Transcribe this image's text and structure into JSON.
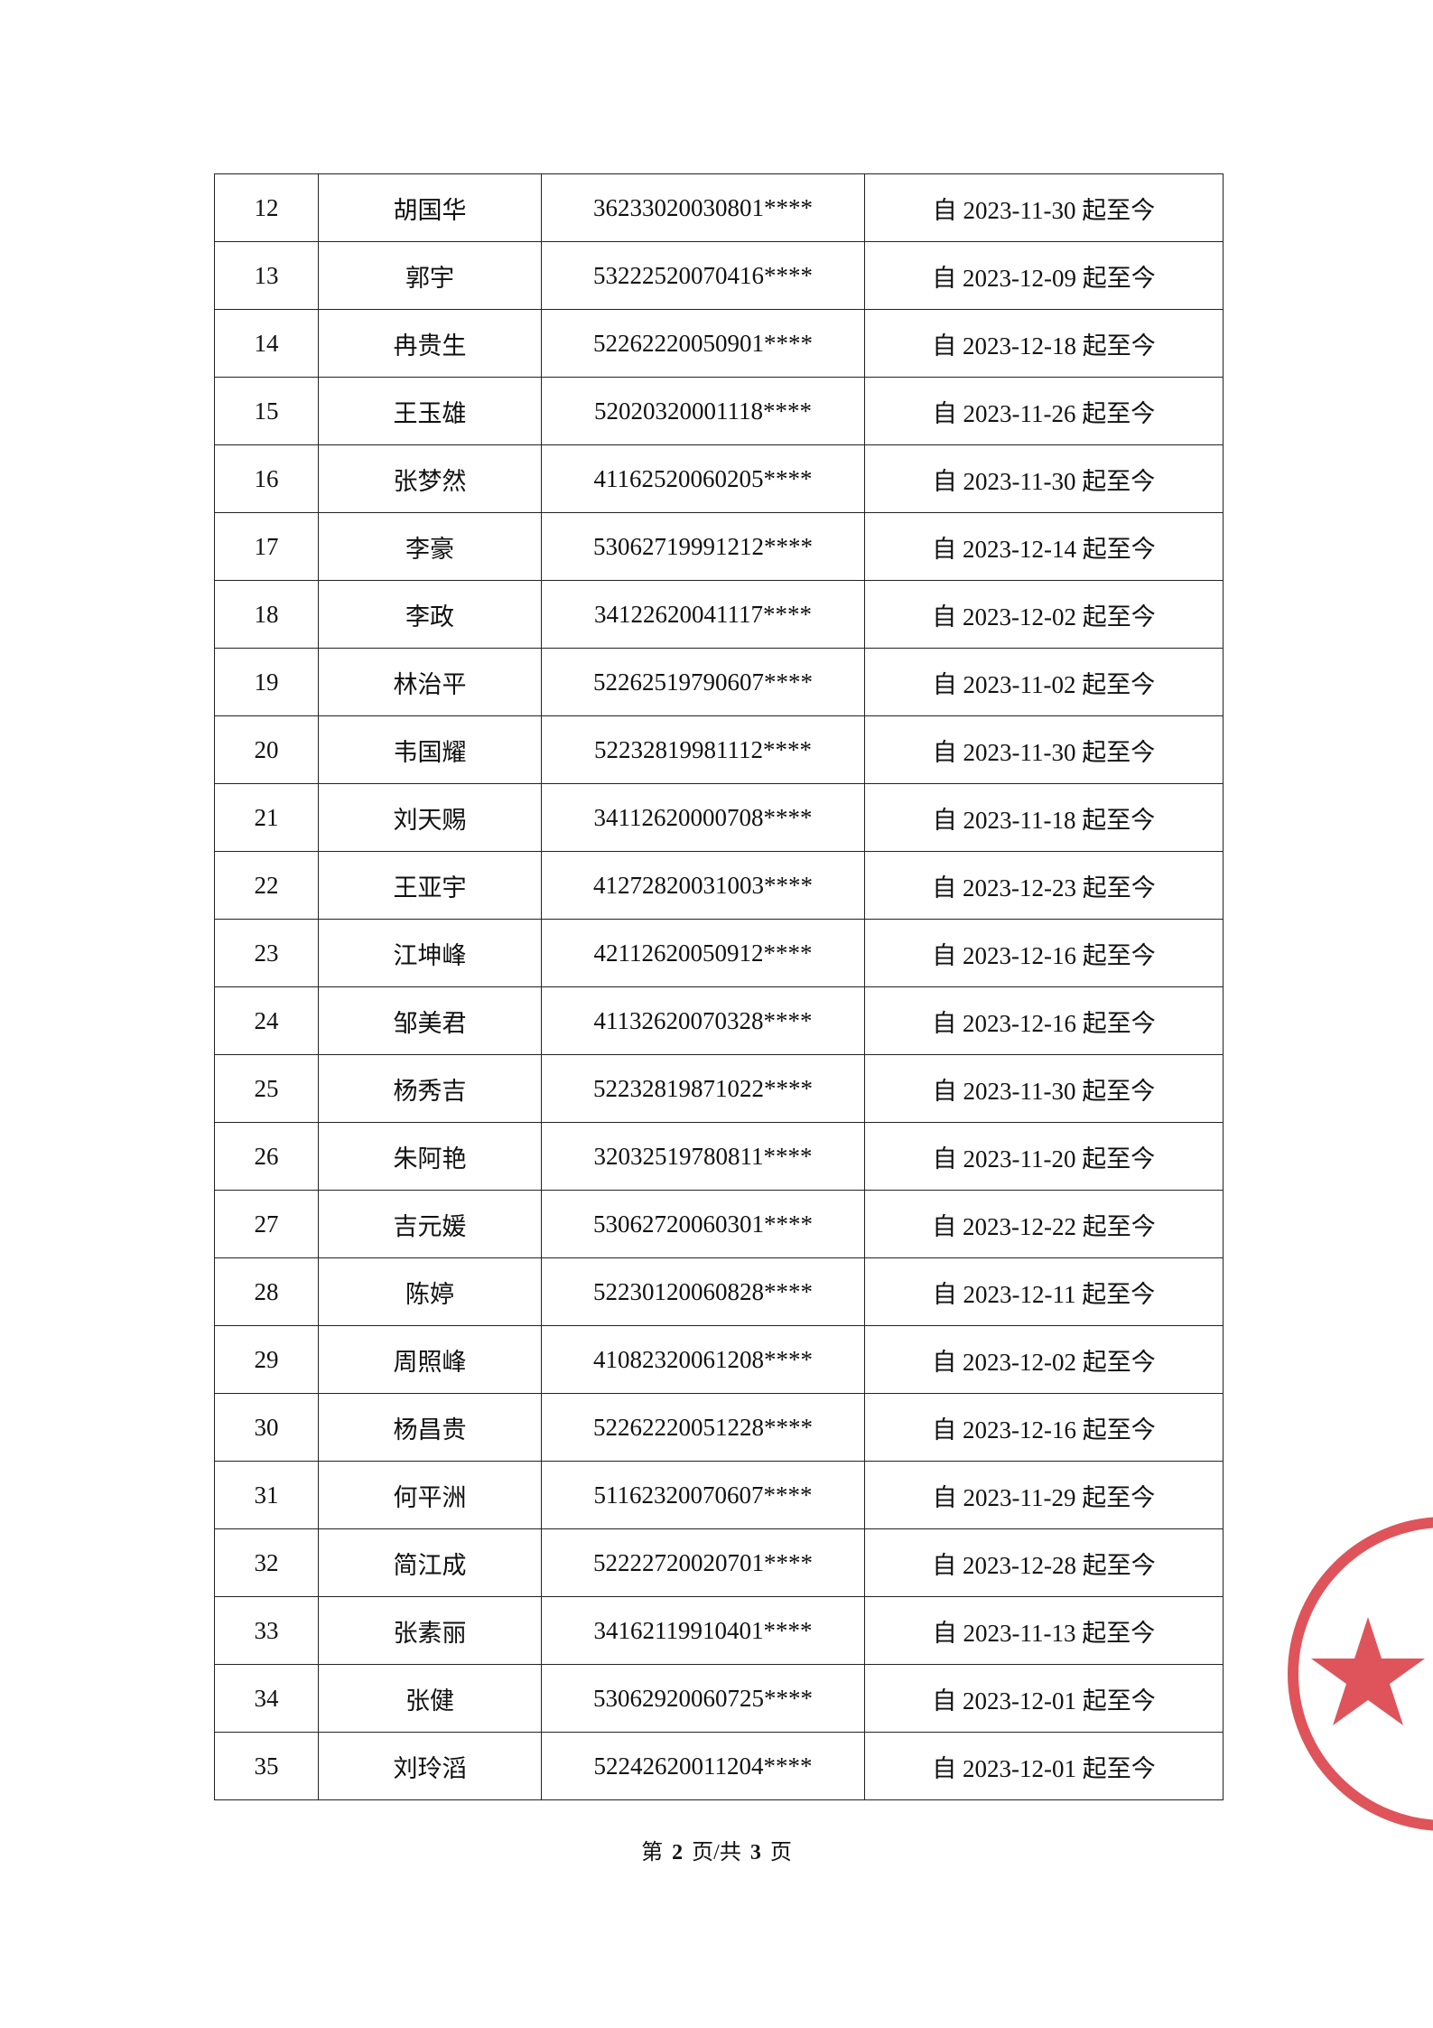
{
  "table": {
    "rows": [
      [
        "12",
        "胡国华",
        "36233020030801****",
        "自 2023-11-30 起至今"
      ],
      [
        "13",
        "郭宇",
        "53222520070416****",
        "自 2023-12-09 起至今"
      ],
      [
        "14",
        "冉贵生",
        "52262220050901****",
        "自 2023-12-18 起至今"
      ],
      [
        "15",
        "王玉雄",
        "52020320001118****",
        "自 2023-11-26 起至今"
      ],
      [
        "16",
        "张梦然",
        "41162520060205****",
        "自 2023-11-30 起至今"
      ],
      [
        "17",
        "李豪",
        "53062719991212****",
        "自 2023-12-14 起至今"
      ],
      [
        "18",
        "李政",
        "34122620041117****",
        "自 2023-12-02 起至今"
      ],
      [
        "19",
        "林治平",
        "52262519790607****",
        "自 2023-11-02 起至今"
      ],
      [
        "20",
        "韦国耀",
        "52232819981112****",
        "自 2023-11-30 起至今"
      ],
      [
        "21",
        "刘天赐",
        "34112620000708****",
        "自 2023-11-18 起至今"
      ],
      [
        "22",
        "王亚宇",
        "41272820031003****",
        "自 2023-12-23 起至今"
      ],
      [
        "23",
        "江坤峰",
        "42112620050912****",
        "自 2023-12-16 起至今"
      ],
      [
        "24",
        "邹美君",
        "41132620070328****",
        "自 2023-12-16 起至今"
      ],
      [
        "25",
        "杨秀吉",
        "52232819871022****",
        "自 2023-11-30 起至今"
      ],
      [
        "26",
        "朱阿艳",
        "32032519780811****",
        "自 2023-11-20 起至今"
      ],
      [
        "27",
        "吉元媛",
        "53062720060301****",
        "自 2023-12-22 起至今"
      ],
      [
        "28",
        "陈婷",
        "52230120060828****",
        "自 2023-12-11 起至今"
      ],
      [
        "29",
        "周照峰",
        "41082320061208****",
        "自 2023-12-02 起至今"
      ],
      [
        "30",
        "杨昌贵",
        "52262220051228****",
        "自 2023-12-16 起至今"
      ],
      [
        "31",
        "何平洲",
        "51162320070607****",
        "自 2023-11-29 起至今"
      ],
      [
        "32",
        "简江成",
        "52222720020701****",
        "自 2023-12-28 起至今"
      ],
      [
        "33",
        "张素丽",
        "34162119910401****",
        "自 2023-11-13 起至今"
      ],
      [
        "34",
        "张健",
        "53062920060725****",
        "自 2023-12-01 起至今"
      ],
      [
        "35",
        "刘玲滔",
        "52242620011204****",
        "自 2023-12-01 起至今"
      ]
    ]
  },
  "footer": {
    "prefix": "第",
    "page": "2",
    "middle": "页/共",
    "total": "3",
    "suffix": "页"
  }
}
